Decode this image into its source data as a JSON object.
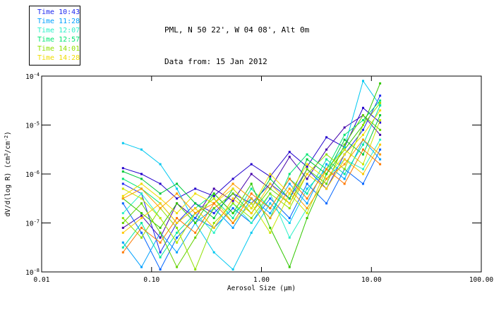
{
  "header": {
    "title": "PML, N 50 22', W 04 08', Alt 0m",
    "subtitle": "Data from: 15 Jan 2012"
  },
  "legend": {
    "items": [
      {
        "label": "Time 10:43",
        "color": "#1E28F0"
      },
      {
        "label": "Time 11:28",
        "color": "#00A0FF"
      },
      {
        "label": "Time 12:07",
        "color": "#2BF0C8"
      },
      {
        "label": "Time 12:57",
        "color": "#00E673"
      },
      {
        "label": "Time 14:01",
        "color": "#8FE000"
      },
      {
        "label": "Time 14:28",
        "color": "#F0DC00"
      }
    ]
  },
  "chart_data": {
    "type": "line",
    "title": "PML, N 50 22', W 04 08', Alt 0m",
    "subtitle": "Data from: 15 Jan 2012",
    "xlabel": "Aerosol Size (μm)",
    "ylabel_parts": [
      {
        "t": "dV/d(log R) (cm"
      },
      {
        "t": "3",
        "sup": true
      },
      {
        "t": "/cm"
      },
      {
        "t": "-2",
        "sup": true
      },
      {
        "t": ")"
      }
    ],
    "x_scale": "log",
    "y_scale": "log",
    "xlim": [
      0.01,
      100.0
    ],
    "ylim": [
      1e-08,
      0.0001
    ],
    "grid": false,
    "legend_position": "top-left-outside",
    "x_ticks": [
      {
        "value": 0.01,
        "label": "0.01"
      },
      {
        "value": 0.1,
        "label": "0.10"
      },
      {
        "value": 1.0,
        "label": "1.00"
      },
      {
        "value": 10.0,
        "label": "10.00"
      },
      {
        "value": 100.0,
        "label": "100.00"
      }
    ],
    "y_ticks": [
      {
        "exp": -4,
        "label": "10^-4"
      },
      {
        "exp": -5,
        "label": "10^-5"
      },
      {
        "exp": -6,
        "label": "10^-6"
      },
      {
        "exp": -7,
        "label": "10^-7"
      },
      {
        "exp": -8,
        "label": "10^-8"
      }
    ],
    "x": [
      0.055,
      0.081,
      0.12,
      0.17,
      0.25,
      0.37,
      0.55,
      0.81,
      1.2,
      1.8,
      2.6,
      3.9,
      5.7,
      8.4,
      12.0
    ],
    "y_units": "log10 of dV/d(log R) in cm3/cm-2",
    "series": [
      {
        "name": "line-01",
        "color": "#4400AA",
        "y_log10": [
          -7.1,
          -6.85,
          -7.3,
          -6.6,
          -6.9,
          -6.3,
          -6.55,
          -6.0,
          -6.3,
          -5.65,
          -6.1,
          -5.5,
          -5.05,
          -4.8,
          -5.2
        ]
      },
      {
        "name": "line-02",
        "color": "#2200CC",
        "y_log10": [
          -5.88,
          -6.0,
          -6.2,
          -6.5,
          -6.3,
          -6.45,
          -6.1,
          -5.8,
          -6.05,
          -5.55,
          -5.85,
          -5.25,
          -5.45,
          -4.65,
          -4.95
        ]
      },
      {
        "name": "line-03",
        "color": "#1E28F0",
        "y_log10": [
          -6.2,
          -6.4,
          -7.6,
          -7.0,
          -6.6,
          -6.8,
          -6.4,
          -6.6,
          -6.2,
          -6.5,
          -5.9,
          -6.3,
          -5.6,
          -5.1,
          -4.4
        ]
      },
      {
        "name": "line-04",
        "color": "#0064FF",
        "y_log10": [
          -6.6,
          -7.2,
          -7.95,
          -7.3,
          -6.9,
          -7.1,
          -6.7,
          -7.0,
          -6.5,
          -6.9,
          -6.2,
          -6.6,
          -5.9,
          -6.2,
          -5.5
        ]
      },
      {
        "name": "line-05",
        "color": "#00A0FF",
        "y_log10": [
          -7.4,
          -7.9,
          -7.2,
          -7.6,
          -7.0,
          -6.7,
          -7.1,
          -6.5,
          -6.8,
          -6.2,
          -6.6,
          -5.8,
          -6.1,
          -5.3,
          -5.7
        ]
      },
      {
        "name": "line-06",
        "color": "#00C8F0",
        "y_log10": [
          -5.37,
          -5.5,
          -5.8,
          -6.3,
          -7.0,
          -7.6,
          -7.95,
          -7.2,
          -6.6,
          -7.0,
          -6.3,
          -5.9,
          -5.45,
          -4.1,
          -4.6
        ]
      },
      {
        "name": "line-07",
        "color": "#2BF0C8",
        "y_log10": [
          -6.8,
          -6.4,
          -6.9,
          -7.4,
          -6.8,
          -7.2,
          -6.6,
          -7.0,
          -6.4,
          -7.3,
          -6.7,
          -6.1,
          -5.7,
          -5.9,
          -5.3
        ]
      },
      {
        "name": "line-08",
        "color": "#00E6A0",
        "y_log10": [
          -7.5,
          -7.0,
          -7.7,
          -7.2,
          -6.8,
          -6.5,
          -6.9,
          -6.3,
          -6.7,
          -6.1,
          -6.4,
          -5.7,
          -6.0,
          -5.4,
          -4.6
        ]
      },
      {
        "name": "line-09",
        "color": "#00E673",
        "y_log10": [
          -6.1,
          -6.3,
          -6.6,
          -7.0,
          -6.7,
          -6.4,
          -6.8,
          -6.5,
          -6.9,
          -6.0,
          -5.6,
          -5.9,
          -5.2,
          -4.9,
          -4.5
        ]
      },
      {
        "name": "line-10",
        "color": "#00C83C",
        "y_log10": [
          -5.95,
          -6.1,
          -6.4,
          -6.2,
          -6.6,
          -6.9,
          -6.3,
          -6.7,
          -6.1,
          -6.5,
          -5.7,
          -6.0,
          -5.3,
          -5.6,
          -4.8
        ]
      },
      {
        "name": "line-11",
        "color": "#32C800",
        "y_log10": [
          -6.5,
          -6.8,
          -7.1,
          -6.6,
          -7.0,
          -6.4,
          -6.8,
          -6.2,
          -7.1,
          -7.9,
          -6.9,
          -6.0,
          -5.5,
          -5.0,
          -4.15
        ]
      },
      {
        "name": "line-12",
        "color": "#64D200",
        "y_log10": [
          -7.0,
          -6.6,
          -7.2,
          -7.9,
          -7.3,
          -6.7,
          -6.4,
          -6.8,
          -6.3,
          -6.6,
          -5.9,
          -6.2,
          -5.4,
          -4.8,
          -5.1
        ]
      },
      {
        "name": "line-13",
        "color": "#8FE000",
        "y_log10": [
          -6.9,
          -7.3,
          -6.7,
          -7.1,
          -7.95,
          -7.0,
          -6.6,
          -6.9,
          -6.4,
          -6.7,
          -6.0,
          -5.6,
          -5.9,
          -5.0,
          -4.55
        ]
      },
      {
        "name": "line-14",
        "color": "#C8E600",
        "y_log10": [
          -6.3,
          -6.5,
          -6.9,
          -7.4,
          -6.8,
          -6.5,
          -7.0,
          -6.6,
          -7.2,
          -6.4,
          -6.8,
          -5.9,
          -5.5,
          -5.8,
          -4.9
        ]
      },
      {
        "name": "line-15",
        "color": "#F0DC00",
        "y_log10": [
          -6.45,
          -6.2,
          -6.5,
          -6.8,
          -6.4,
          -6.6,
          -6.3,
          -6.7,
          -6.0,
          -6.4,
          -5.8,
          -6.1,
          -5.6,
          -5.2,
          -4.7
        ]
      },
      {
        "name": "line-16",
        "color": "#FFC800",
        "y_log10": [
          -7.2,
          -6.9,
          -6.6,
          -7.0,
          -6.7,
          -7.1,
          -6.5,
          -6.8,
          -6.2,
          -6.6,
          -6.0,
          -6.3,
          -5.7,
          -6.0,
          -5.4
        ]
      },
      {
        "name": "line-17",
        "color": "#FF9B00",
        "y_log10": [
          -6.5,
          -6.3,
          -6.7,
          -6.4,
          -6.8,
          -6.6,
          -6.2,
          -6.5,
          -6.9,
          -6.3,
          -6.7,
          -6.1,
          -5.8,
          -5.3,
          -5.6
        ]
      },
      {
        "name": "line-18",
        "color": "#FF7800",
        "y_log10": [
          -7.6,
          -7.1,
          -7.4,
          -6.9,
          -7.2,
          -6.6,
          -7.0,
          -6.4,
          -6.7,
          -6.1,
          -6.5,
          -5.9,
          -6.2,
          -5.5,
          -5.8
        ]
      }
    ]
  }
}
